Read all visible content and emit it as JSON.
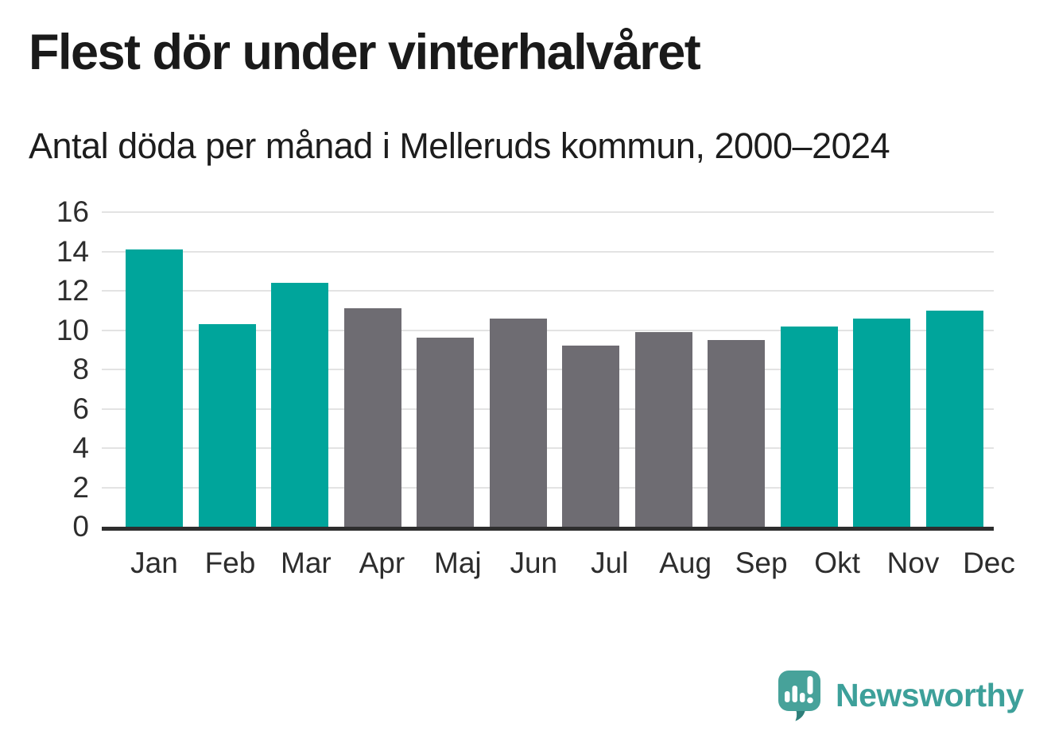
{
  "chart_data": {
    "type": "bar",
    "title": "Flest dör under vinterhalvåret",
    "subtitle": "Antal döda per månad i Melleruds kommun, 2000–2024",
    "categories": [
      "Jan",
      "Feb",
      "Mar",
      "Apr",
      "Maj",
      "Jun",
      "Jul",
      "Aug",
      "Sep",
      "Okt",
      "Nov",
      "Dec"
    ],
    "values": [
      14.1,
      10.3,
      12.4,
      11.1,
      9.6,
      10.6,
      9.2,
      9.9,
      9.5,
      10.2,
      10.6,
      11.0
    ],
    "bar_colors": [
      "#00a59b",
      "#00a59b",
      "#00a59b",
      "#6e6c72",
      "#6e6c72",
      "#6e6c72",
      "#6e6c72",
      "#6e6c72",
      "#6e6c72",
      "#00a59b",
      "#00a59b",
      "#00a59b"
    ],
    "xlabel": "",
    "ylabel": "",
    "ylim": [
      0,
      16
    ],
    "yticks": [
      0,
      2,
      4,
      6,
      8,
      10,
      12,
      14,
      16
    ],
    "grid": true,
    "legend": false,
    "palette": {
      "winter_teal": "#00a59b",
      "summer_gray": "#6e6c72",
      "gridline": "#e3e3e3",
      "axis": "#2e2e2e"
    }
  },
  "footer": {
    "brand": "Newsworthy",
    "brand_color": "#3da09a",
    "icon": "newsworthy-speech-bubble-bar-chart-icon",
    "icon_color": "#47a29a",
    "icon_accent": "#2e7f7a"
  }
}
